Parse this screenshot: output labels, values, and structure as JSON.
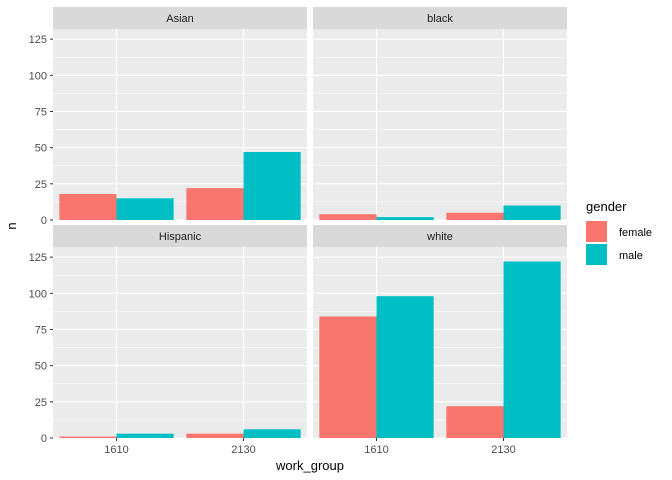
{
  "chart_data": {
    "type": "bar",
    "title": "",
    "xlabel": "work_group",
    "ylabel": "n",
    "ylim": [
      0,
      132
    ],
    "y_ticks": [
      0,
      25,
      50,
      75,
      100,
      125
    ],
    "categories": [
      "1610",
      "2130"
    ],
    "grid": true,
    "facet_layout": "2x2",
    "legend": {
      "title": "gender",
      "placement": "right",
      "entries": [
        {
          "name": "female",
          "color": "#F8766D"
        },
        {
          "name": "male",
          "color": "#00BFC4"
        }
      ]
    },
    "facets": [
      {
        "label": "Asian",
        "series": [
          {
            "name": "female",
            "values": [
              18,
              22
            ]
          },
          {
            "name": "male",
            "values": [
              15,
              47
            ]
          }
        ]
      },
      {
        "label": "black",
        "series": [
          {
            "name": "female",
            "values": [
              4,
              5
            ]
          },
          {
            "name": "male",
            "values": [
              2,
              10
            ]
          }
        ]
      },
      {
        "label": "Hispanic",
        "series": [
          {
            "name": "female",
            "values": [
              1,
              3
            ]
          },
          {
            "name": "male",
            "values": [
              3,
              6
            ]
          }
        ]
      },
      {
        "label": "white",
        "series": [
          {
            "name": "female",
            "values": [
              84,
              22
            ]
          },
          {
            "name": "male",
            "values": [
              98,
              122
            ]
          }
        ]
      }
    ]
  }
}
